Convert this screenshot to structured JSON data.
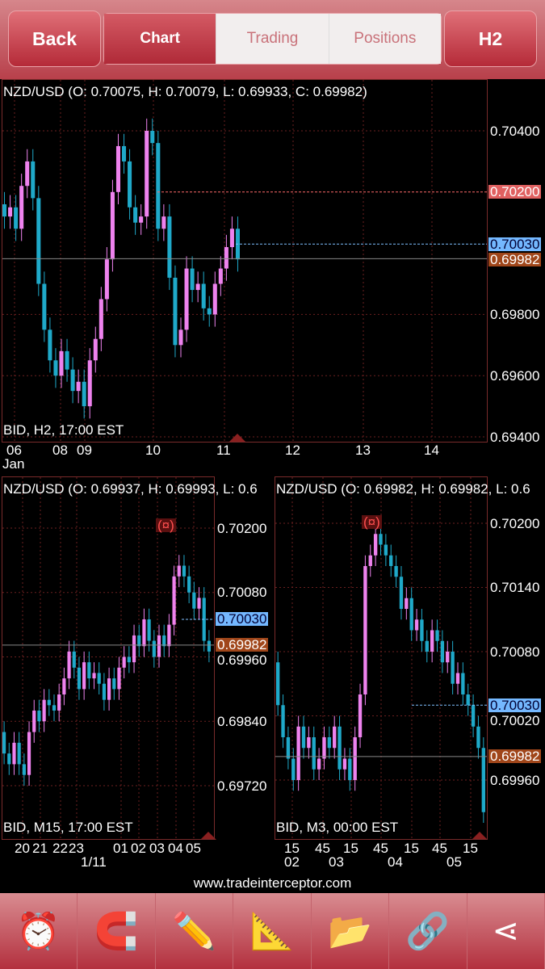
{
  "header": {
    "back": "Back",
    "tabs": [
      "Chart",
      "Trading",
      "Positions"
    ],
    "active_tab": "Chart",
    "timeframe": "H2"
  },
  "colors": {
    "bull": "#ee82ee",
    "bear": "#1fa9c9",
    "grid": "#6b1f1f",
    "bid_line": "#7fbfff",
    "ask_line": "#ff6b6b",
    "close_tag": "#a0461a",
    "bid_tag": "#74b8ff",
    "ask_tag": "#e06060"
  },
  "main": {
    "title": "NZD/USD (O: 0.70075, H: 0.70079, L: 0.69933, C: 0.69982)",
    "footer": "BID, H2, 17:00 EST",
    "y_ticks": [
      "0.70400",
      "0.69800",
      "0.69600",
      "0.69400"
    ],
    "ask_tag": "0.70200",
    "bid_tag": "0.70030",
    "close_tag": "0.69982",
    "x_ticks": [
      "06",
      "08",
      "09",
      "10",
      "11",
      "12",
      "13",
      "14"
    ],
    "x_sub": "Jan",
    "closes": [
      0.7012,
      0.7015,
      0.7008,
      0.7022,
      0.703,
      0.7018,
      0.699,
      0.6975,
      0.6965,
      0.696,
      0.6968,
      0.6962,
      0.6955,
      0.6958,
      0.695,
      0.6965,
      0.6972,
      0.6985,
      0.6998,
      0.702,
      0.7035,
      0.703,
      0.7015,
      0.701,
      0.7012,
      0.704,
      0.7036,
      0.7008,
      0.7012,
      0.6992,
      0.697,
      0.6975,
      0.6995,
      0.6988,
      0.699,
      0.6982,
      0.698,
      0.699,
      0.6995,
      0.7002,
      0.7008,
      0.6998
    ]
  },
  "m15": {
    "title": "NZD/USD (O: 0.69937, H: 0.69993, L: 0.6",
    "footer": "BID, M15, 17:00 EST",
    "y_ticks": [
      "0.70200",
      "0.70080",
      "0.69960",
      "0.69840",
      "0.69720"
    ],
    "bid_tag": "0.70030",
    "close_tag": "0.69982",
    "x_ticks": [
      "20",
      "21",
      "22",
      "23",
      "01",
      "02",
      "03",
      "04",
      "05"
    ],
    "x_sub": "1/11",
    "marker": "(¤)",
    "closes": [
      0.6978,
      0.6976,
      0.698,
      0.6976,
      0.6974,
      0.6982,
      0.6986,
      0.6984,
      0.6988,
      0.6987,
      0.6986,
      0.6989,
      0.6992,
      0.6997,
      0.6994,
      0.699,
      0.6995,
      0.6992,
      0.6993,
      0.6991,
      0.6988,
      0.6992,
      0.699,
      0.6994,
      0.6996,
      0.6995,
      0.7,
      0.6998,
      0.7003,
      0.6999,
      0.6996,
      0.7,
      0.6998,
      0.7002,
      0.7011,
      0.7013,
      0.7011,
      0.7008,
      0.7005,
      0.7007,
      0.6999,
      0.6997
    ]
  },
  "m3": {
    "title": "NZD/USD (O: 0.69982, H: 0.69982, L: 0.6",
    "footer": "BID, M3, 00:00 EST",
    "y_ticks": [
      "0.70200",
      "0.70140",
      "0.70080",
      "0.70020",
      "0.69960"
    ],
    "bid_tag": "0.70030",
    "close_tag": "0.69982",
    "x_ticks": [
      "15",
      "45",
      "15",
      "45",
      "15",
      "45",
      "15"
    ],
    "x_sub": [
      "02",
      "03",
      "04",
      "05"
    ],
    "marker": "(¤)",
    "closes": [
      0.7003,
      0.7,
      0.6998,
      0.6996,
      0.7001,
      0.6999,
      0.7,
      0.6997,
      0.6998,
      0.7,
      0.6999,
      0.7001,
      0.6997,
      0.6998,
      0.6996,
      0.7,
      0.7004,
      0.7016,
      0.7017,
      0.7019,
      0.7018,
      0.7017,
      0.7016,
      0.7015,
      0.7012,
      0.7013,
      0.701,
      0.7011,
      0.7009,
      0.7008,
      0.701,
      0.7009,
      0.7007,
      0.7008,
      0.7005,
      0.7006,
      0.7004,
      0.7003,
      0.7001,
      0.6999,
      0.6993
    ]
  },
  "footer_url": "www.tradeinterceptor.com",
  "toolbar": [
    "alarm-clock-icon",
    "magnet-icon",
    "drawing-tools-icon",
    "drawing-tools-alert-icon",
    "folder-icon",
    "link-icon",
    "share-icon"
  ]
}
